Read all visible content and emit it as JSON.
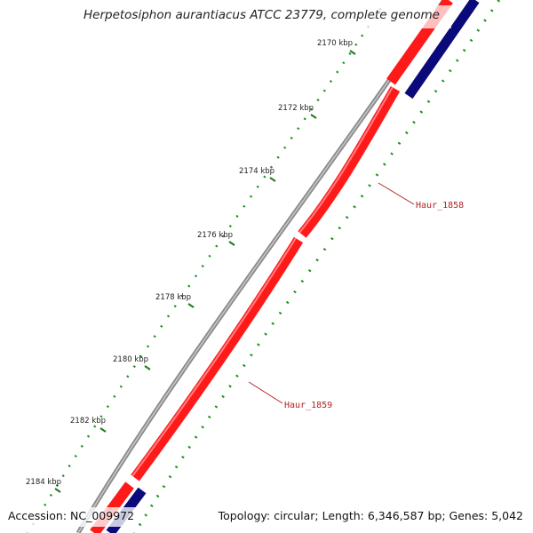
{
  "header": {
    "title": "Herpetosiphon aurantiacus ATCC 23779, complete genome"
  },
  "footer": {
    "accession": "Accession: NC_009972",
    "summary": "Topology: circular; Length: 6,346,587 bp; Genes: 5,042"
  },
  "map": {
    "ticks": [
      {
        "label": "2170 kbp"
      },
      {
        "label": "2172 kbp"
      },
      {
        "label": "2174 kbp"
      },
      {
        "label": "2176 kbp"
      },
      {
        "label": "2178 kbp"
      },
      {
        "label": "2180 kbp"
      },
      {
        "label": "2182 kbp"
      },
      {
        "label": "2184 kbp"
      }
    ],
    "genes": [
      {
        "label": "Haur_1858"
      },
      {
        "label": "Haur_1859"
      }
    ],
    "colors": {
      "backbone": "#808080",
      "forward_cds": "#ff0000",
      "reverse_cds": "#00008b",
      "gc_track": "#228b22",
      "label": "#b22222"
    }
  }
}
